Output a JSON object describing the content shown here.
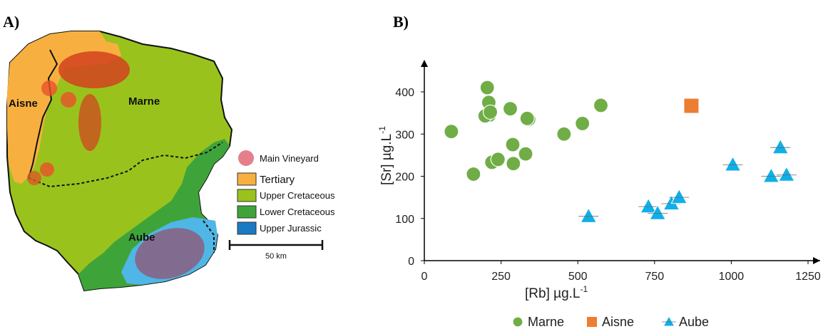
{
  "panels": {
    "a_label": "A)",
    "b_label": "B)"
  },
  "map": {
    "regions": [
      "Aisne",
      "Marne",
      "Aube"
    ],
    "legend": [
      {
        "label": "Main Vineyard",
        "color": "#e57f8a"
      },
      {
        "label": "Tertiary",
        "color": "#f7b040"
      },
      {
        "label": "Upper Cretaceous",
        "color": "#99c31c"
      },
      {
        "label": "Lower Cretaceous",
        "color": "#3ea43a"
      },
      {
        "label": "Upper Jurassic",
        "color": "#1a7ac4"
      }
    ],
    "scale_bar": "50 km"
  },
  "chart_data": {
    "type": "scatter",
    "xlabel": "[Rb] µg.L",
    "xlabel_sup": "-1",
    "ylabel": "[Sr] µg.L",
    "ylabel_sup": "-1",
    "xlim": [
      0,
      1300
    ],
    "ylim": [
      0,
      450
    ],
    "xticks": [
      0,
      250,
      500,
      750,
      1000,
      1250
    ],
    "yticks": [
      0,
      100,
      200,
      300,
      400
    ],
    "legend_position": "bottom",
    "series": [
      {
        "name": "Marne",
        "marker": "circle",
        "color": "#70ad47",
        "points": [
          [
            88,
            306
          ],
          [
            160,
            205
          ],
          [
            205,
            410
          ],
          [
            210,
            375
          ],
          [
            212,
            345
          ],
          [
            198,
            343
          ],
          [
            215,
            352
          ],
          [
            280,
            360
          ],
          [
            288,
            275
          ],
          [
            220,
            233
          ],
          [
            240,
            240
          ],
          [
            290,
            230
          ],
          [
            330,
            253
          ],
          [
            340,
            335
          ],
          [
            335,
            337
          ],
          [
            455,
            300
          ],
          [
            515,
            325
          ],
          [
            575,
            368
          ]
        ]
      },
      {
        "name": "Aisne",
        "marker": "square",
        "color": "#ed7d31",
        "points": [
          [
            870,
            367
          ]
        ]
      },
      {
        "name": "Aube",
        "marker": "triangle",
        "color": "#0fb0e8",
        "points": [
          [
            535,
            105
          ],
          [
            730,
            128
          ],
          [
            760,
            112
          ],
          [
            805,
            135
          ],
          [
            830,
            150
          ],
          [
            1005,
            227
          ],
          [
            1130,
            200
          ],
          [
            1180,
            203
          ],
          [
            1160,
            268
          ]
        ]
      }
    ]
  }
}
